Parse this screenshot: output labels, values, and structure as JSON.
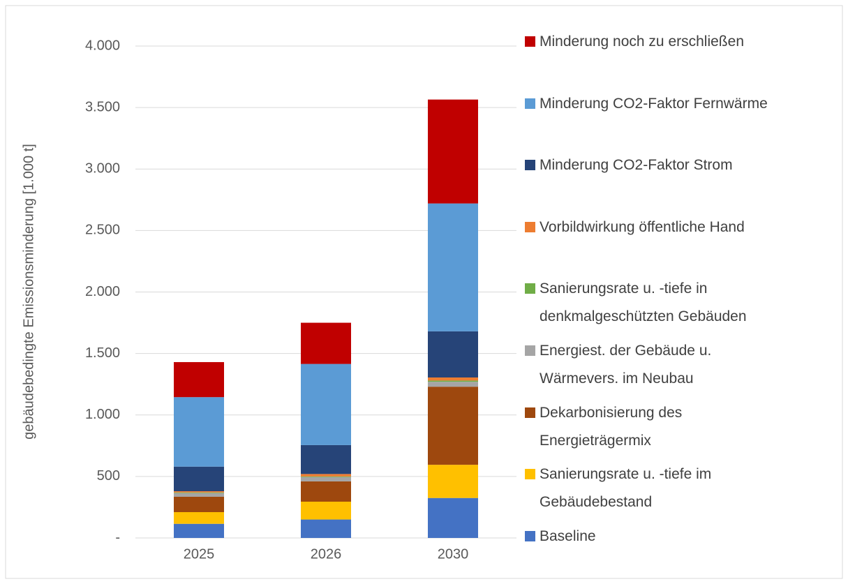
{
  "chart_data": {
    "type": "stacked_bar",
    "y_label": "gebäudebedingte Emissionsminderung [1.000 t]",
    "categories": [
      "2025",
      "2026",
      "2030"
    ],
    "series": [
      {
        "name": "Baseline",
        "color": "#4472c4",
        "values": [
          115,
          150,
          325
        ]
      },
      {
        "name": "Sanierungsrate u. -tiefe im Gebäudebestand",
        "color": "#ffc000",
        "values": [
          95,
          145,
          270
        ]
      },
      {
        "name": "Dekarbonisierung des Energieträgermix",
        "color": "#9e480e",
        "values": [
          125,
          165,
          635
        ]
      },
      {
        "name": "Energiest. der Gebäude u. Wärmevers. im Neubau",
        "color": "#a5a5a5",
        "values": [
          30,
          35,
          40
        ]
      },
      {
        "name": "Sanierungsrate u. -tiefe in denkmalgeschützten Gebäuden",
        "color": "#70ad47",
        "values": [
          5,
          5,
          10
        ]
      },
      {
        "name": "Vorbildwirkung öffentliche Hand",
        "color": "#ed7d31",
        "values": [
          10,
          20,
          25
        ]
      },
      {
        "name": "Minderung CO2-Faktor Strom",
        "color": "#264478",
        "values": [
          200,
          235,
          375
        ]
      },
      {
        "name": "Minderung CO2-Faktor Fernwärme",
        "color": "#5b9bd5",
        "values": [
          565,
          660,
          1040
        ]
      },
      {
        "name": "Minderung noch zu erschließen",
        "color": "#c00000",
        "values": [
          285,
          335,
          845
        ]
      }
    ],
    "ylim": [
      0,
      4000
    ],
    "yticks": [
      {
        "value": 0,
        "label": "-"
      },
      500,
      {
        "value": 1000,
        "label": "1.000"
      },
      {
        "value": 1500,
        "label": "1.500"
      },
      {
        "value": 2000,
        "label": "2.000"
      },
      {
        "value": 2500,
        "label": "2.500"
      },
      {
        "value": 3000,
        "label": "3.000"
      },
      {
        "value": 3500,
        "label": "3.500"
      },
      {
        "value": 4000,
        "label": "4.000"
      }
    ],
    "grid": true
  }
}
